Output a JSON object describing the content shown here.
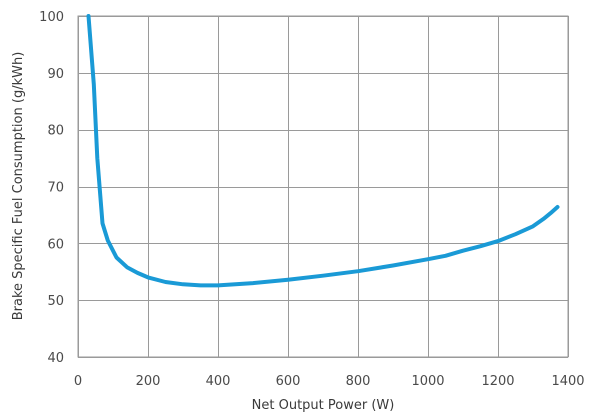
{
  "chart_data": {
    "type": "line",
    "title": "",
    "xlabel": "Net Output Power (W)",
    "ylabel": "Brake Specific Fuel Consumption (g/kWh)",
    "xlim": [
      0,
      1400
    ],
    "ylim": [
      40,
      100
    ],
    "xticks": [
      0,
      200,
      400,
      600,
      800,
      1000,
      1200,
      1400
    ],
    "yticks": [
      40,
      50,
      60,
      70,
      80,
      90,
      100
    ],
    "grid": true,
    "legend": "none",
    "colors": {
      "line": "#1a9ad6",
      "grid": "#9a9a9a",
      "text": "#4a4a4a"
    },
    "series": [
      {
        "x": [
          30,
          45,
          55,
          70,
          85,
          110,
          140,
          170,
          200,
          250,
          300,
          350,
          400,
          500,
          600,
          700,
          800,
          900,
          1000,
          1050,
          1100,
          1150,
          1200,
          1250,
          1300,
          1330,
          1350,
          1370
        ],
        "y": [
          100,
          88,
          75,
          63.5,
          60.5,
          57.5,
          55.8,
          54.8,
          54.0,
          53.2,
          52.8,
          52.6,
          52.6,
          53.0,
          53.6,
          54.3,
          55.1,
          56.1,
          57.2,
          57.8,
          58.7,
          59.5,
          60.4,
          61.6,
          63.0,
          64.3,
          65.3,
          66.4
        ]
      }
    ]
  }
}
